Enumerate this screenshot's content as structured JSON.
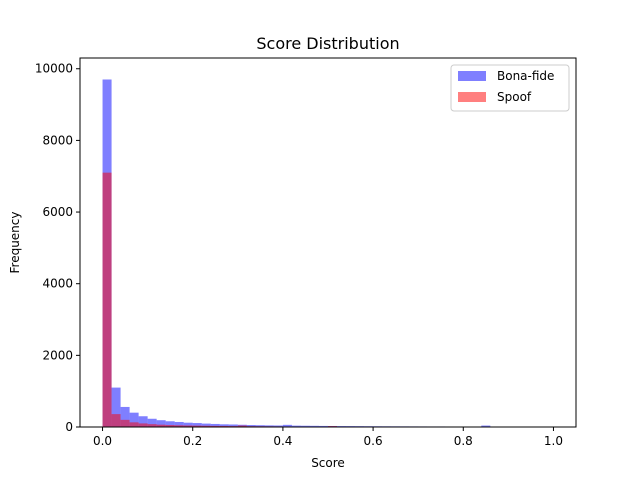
{
  "chart_data": {
    "type": "bar",
    "title": "Score Distribution",
    "xlabel": "Score",
    "ylabel": "Frequency",
    "xlim": [
      -0.05,
      1.05
    ],
    "ylim": [
      0,
      10300
    ],
    "bin_width": 0.02,
    "x_ticks": [
      0.0,
      0.2,
      0.4,
      0.6,
      0.8,
      1.0
    ],
    "x_tick_labels": [
      "0.0",
      "0.2",
      "0.4",
      "0.6",
      "0.8",
      "1.0"
    ],
    "y_ticks": [
      0,
      2000,
      4000,
      6000,
      8000,
      10000
    ],
    "y_tick_labels": [
      "0",
      "2000",
      "4000",
      "6000",
      "8000",
      "10000"
    ],
    "grid": false,
    "legend_position": "top-right",
    "series": [
      {
        "name": "Bona-fide",
        "color": "#0000ff",
        "opacity": 0.5,
        "bin_starts": [
          0.0,
          0.02,
          0.04,
          0.06,
          0.08,
          0.1,
          0.12,
          0.14,
          0.16,
          0.18,
          0.2,
          0.22,
          0.24,
          0.26,
          0.28,
          0.3,
          0.32,
          0.34,
          0.36,
          0.38,
          0.4,
          0.42,
          0.44,
          0.46,
          0.48,
          0.5,
          0.52,
          0.54,
          0.56,
          0.58,
          0.6,
          0.62,
          0.64,
          0.66,
          0.68,
          0.7,
          0.72,
          0.74,
          0.76,
          0.78,
          0.8,
          0.82,
          0.84,
          0.86
        ],
        "values": [
          9700,
          1100,
          560,
          400,
          300,
          230,
          190,
          160,
          140,
          120,
          110,
          95,
          85,
          75,
          70,
          62,
          55,
          50,
          45,
          42,
          60,
          38,
          35,
          33,
          30,
          28,
          26,
          25,
          24,
          22,
          21,
          20,
          19,
          18,
          17,
          16,
          15,
          15,
          14,
          13,
          12,
          11,
          40,
          10
        ]
      },
      {
        "name": "Spoof",
        "color": "#ff0000",
        "opacity": 0.5,
        "bin_starts": [
          0.0,
          0.02,
          0.04,
          0.06,
          0.08,
          0.1,
          0.12,
          0.14,
          0.16,
          0.18,
          0.2,
          0.22,
          0.24,
          0.26,
          0.28,
          0.3,
          0.32,
          0.34,
          0.36,
          0.38,
          0.4,
          0.42,
          0.44,
          0.46,
          0.48,
          0.5,
          0.52,
          0.54,
          0.56,
          0.58,
          0.6
        ],
        "values": [
          7100,
          360,
          200,
          130,
          100,
          80,
          65,
          55,
          48,
          42,
          38,
          34,
          30,
          28,
          25,
          40,
          22,
          20,
          18,
          16,
          15,
          14,
          13,
          12,
          11,
          25,
          10,
          9,
          9,
          8,
          8
        ]
      }
    ]
  }
}
